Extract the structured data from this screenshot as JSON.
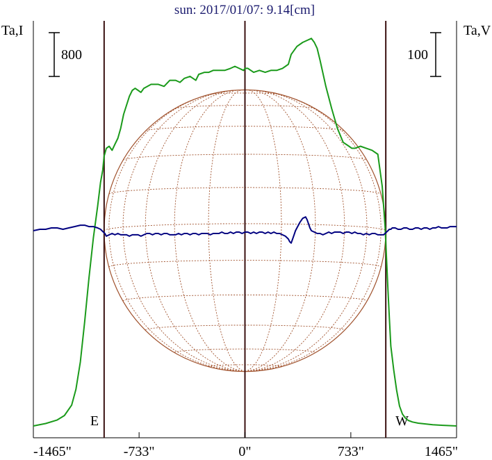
{
  "chart_data": {
    "type": "line",
    "title": "sun: 2017/01/07: 9.14[cm]",
    "left_axis_label": "Ta,I",
    "right_axis_label": "Ta,V",
    "left_scale_bar": "800",
    "right_scale_bar": "100",
    "x_ticks": [
      {
        "value": -1465,
        "label": "-1465\""
      },
      {
        "value": -733,
        "label": "-733\""
      },
      {
        "value": 0,
        "label": "0\""
      },
      {
        "value": 733,
        "label": "733\""
      },
      {
        "value": 1465,
        "label": "1465\""
      }
    ],
    "xlim": [
      -1465,
      1465
    ],
    "solar_disk_radius_arcsec": 975,
    "limb_markers": [
      {
        "value": -975,
        "label": "E"
      },
      {
        "value": 0,
        "label": ""
      },
      {
        "value": 975,
        "label": "W"
      }
    ],
    "colors": {
      "intensity": "#1a9a1a",
      "polarization": "#000080",
      "disk": "#a0522d",
      "limb_lines": "#3a1010",
      "title": "#1a1a6e"
    },
    "series": [
      {
        "key": "intensity",
        "axis": "left",
        "x": [
          -1465,
          -1380,
          -1300,
          -1250,
          -1200,
          -1170,
          -1140,
          -1110,
          -1080,
          -1050,
          -1020,
          -1000,
          -985,
          -975,
          -960,
          -940,
          -920,
          -900,
          -880,
          -860,
          -840,
          -800,
          -780,
          -760,
          -740,
          -720,
          -700,
          -650,
          -600,
          -560,
          -520,
          -480,
          -450,
          -420,
          -380,
          -340,
          -320,
          -280,
          -250,
          -220,
          -180,
          -140,
          -100,
          -70,
          -40,
          -10,
          0,
          20,
          60,
          100,
          140,
          180,
          220,
          260,
          280,
          300,
          320,
          360,
          400,
          430,
          460,
          480,
          500,
          520,
          560,
          600,
          640,
          680,
          720,
          740,
          760,
          800,
          840,
          880,
          920,
          950,
          970,
          980,
          990,
          1000,
          1010,
          1030,
          1050,
          1070,
          1090,
          1110,
          1130,
          1160,
          1200,
          1250,
          1300,
          1350,
          1400,
          1465
        ],
        "y": [
          0,
          60,
          150,
          260,
          520,
          920,
          1600,
          2600,
          3700,
          4700,
          5500,
          6100,
          6400,
          6750,
          6950,
          7000,
          6900,
          7050,
          7200,
          7450,
          7800,
          8250,
          8400,
          8450,
          8400,
          8350,
          8450,
          8550,
          8550,
          8500,
          8650,
          8650,
          8600,
          8700,
          8750,
          8650,
          8800,
          8850,
          8850,
          8900,
          8900,
          8900,
          8950,
          9000,
          8950,
          8900,
          8950,
          8950,
          8850,
          8900,
          8850,
          8900,
          8900,
          8950,
          9000,
          9050,
          9300,
          9500,
          9600,
          9650,
          9700,
          9600,
          9450,
          9150,
          8500,
          7950,
          7450,
          7100,
          7000,
          6950,
          6950,
          7000,
          6950,
          6900,
          6800,
          6000,
          5000,
          4200,
          3400,
          2700,
          2000,
          1400,
          900,
          500,
          300,
          200,
          140,
          100,
          70,
          50,
          30,
          20,
          10,
          0
        ]
      },
      {
        "key": "polarization",
        "axis": "right",
        "x": [
          -1465,
          -1420,
          -1380,
          -1340,
          -1300,
          -1260,
          -1220,
          -1180,
          -1140,
          -1110,
          -1080,
          -1050,
          -1020,
          -1000,
          -990,
          -980,
          -970,
          -960,
          -940,
          -920,
          -900,
          -880,
          -860,
          -840,
          -820,
          -800,
          -780,
          -760,
          -740,
          -720,
          -700,
          -680,
          -660,
          -640,
          -620,
          -600,
          -580,
          -560,
          -540,
          -520,
          -500,
          -480,
          -460,
          -440,
          -420,
          -400,
          -380,
          -360,
          -340,
          -320,
          -300,
          -280,
          -260,
          -240,
          -220,
          -200,
          -180,
          -160,
          -140,
          -120,
          -100,
          -80,
          -60,
          -40,
          -20,
          0,
          20,
          40,
          60,
          80,
          100,
          120,
          140,
          160,
          180,
          200,
          220,
          240,
          260,
          280,
          300,
          310,
          320,
          330,
          340,
          350,
          360,
          380,
          400,
          420,
          430,
          440,
          450,
          460,
          480,
          500,
          520,
          540,
          560,
          580,
          600,
          620,
          640,
          660,
          680,
          700,
          720,
          740,
          760,
          780,
          800,
          820,
          840,
          860,
          880,
          900,
          920,
          940,
          960,
          970,
          980,
          990,
          1000,
          1010,
          1020,
          1040,
          1060,
          1080,
          1100,
          1120,
          1140,
          1160,
          1180,
          1200,
          1220,
          1240,
          1260,
          1280,
          1300,
          1320,
          1340,
          1360,
          1380,
          1400,
          1420,
          1440,
          1465
        ],
        "y": [
          0,
          1,
          1,
          2,
          2,
          1,
          2,
          3,
          4,
          4,
          3,
          3,
          2,
          1,
          0,
          -1,
          -2,
          -4,
          -3,
          -2,
          -3,
          -2,
          -3,
          -3,
          -3,
          -4,
          -3,
          -3,
          -3,
          -4,
          -3,
          -2,
          -2,
          -3,
          -2,
          -2,
          -3,
          -2,
          -2,
          -3,
          -3,
          -3,
          -2,
          -3,
          -2,
          -2,
          -3,
          -2,
          -2,
          -3,
          -2,
          -2,
          -2,
          -3,
          -2,
          -2,
          -2,
          -1,
          -2,
          -2,
          -1,
          -2,
          -1,
          -1,
          -2,
          -1,
          -1,
          -2,
          -1,
          -2,
          -1,
          -1,
          -2,
          -1,
          -2,
          -1,
          -2,
          -2,
          -3,
          -4,
          -6,
          -8,
          -9,
          -6,
          -3,
          0,
          2,
          6,
          9,
          10,
          8,
          5,
          2,
          0,
          -1,
          -2,
          -2,
          -3,
          -2,
          -1,
          -2,
          -1,
          -1,
          -1,
          -2,
          -1,
          -1,
          -2,
          -1,
          -2,
          -2,
          -3,
          -2,
          -3,
          -2,
          -2,
          -3,
          -3,
          -3,
          -2,
          -1,
          0,
          1,
          1,
          2,
          2,
          1,
          1,
          2,
          2,
          1,
          1,
          2,
          2,
          1,
          2,
          2,
          1,
          2,
          2,
          3,
          2,
          2,
          2,
          3,
          3,
          3
        ]
      }
    ]
  }
}
